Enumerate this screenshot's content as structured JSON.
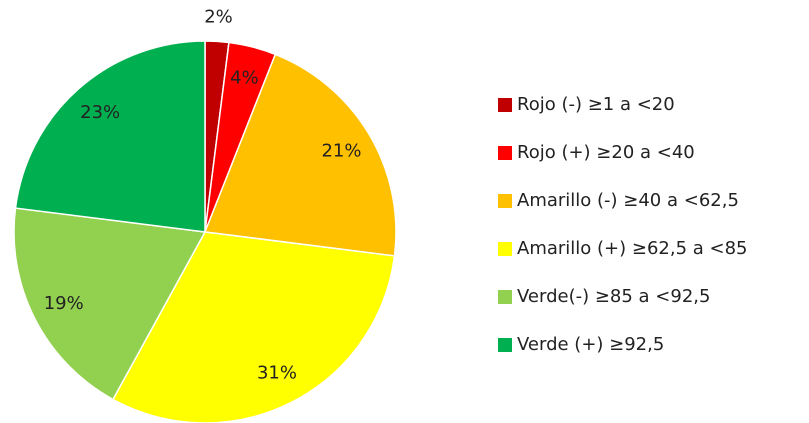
{
  "chart_data": {
    "type": "pie",
    "categories": [
      "Rojo (-) ≥1 a <20",
      "Rojo (+) ≥20 a <40",
      "Amarillo (-) ≥40 a <62,5",
      "Amarillo (+) ≥62,5 a <85",
      "Verde(-) ≥85 a <92,5",
      "Verde (+) ≥92,5"
    ],
    "values": [
      2,
      4,
      21,
      31,
      19,
      23
    ],
    "value_labels": [
      "2%",
      "4%",
      "21%",
      "31%",
      "19%",
      "23%"
    ],
    "colors": [
      "#c00000",
      "#ff0000",
      "#ffc000",
      "#ffff00",
      "#92d050",
      "#00b050"
    ],
    "legend": "right"
  }
}
